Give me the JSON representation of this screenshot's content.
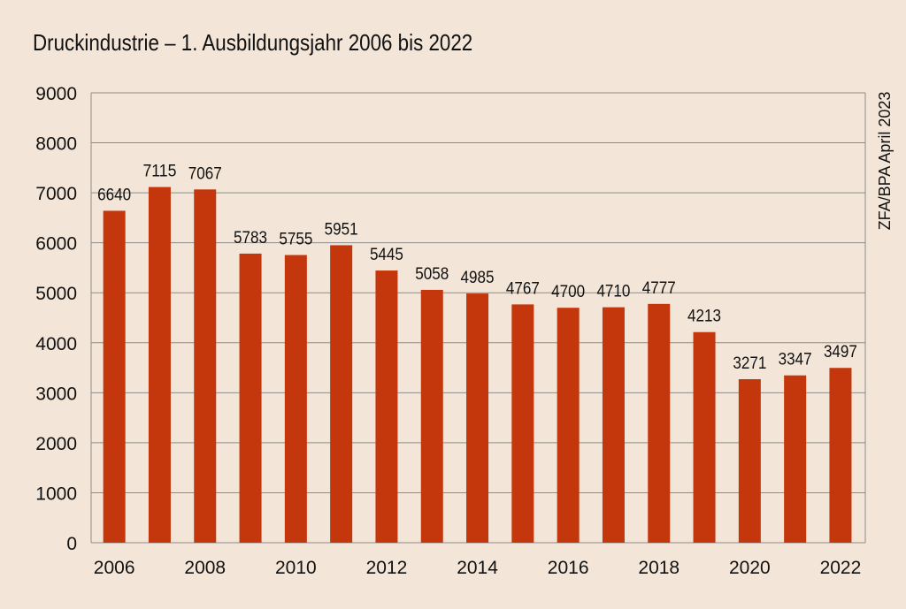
{
  "colors": {
    "background": "#f3e6d8",
    "bar": "#c4360c",
    "grid": "#8c8c8c",
    "text": "#111111"
  },
  "chart_data": {
    "type": "bar",
    "title": "Druckindustrie – 1. Ausbildungsjahr 2006 bis 2022",
    "source": "ZFA/BPA April 2023",
    "xlabel": "",
    "ylabel": "",
    "ylim": [
      0,
      9000
    ],
    "yticks": [
      0,
      1000,
      2000,
      3000,
      4000,
      5000,
      6000,
      7000,
      8000,
      9000
    ],
    "grid": true,
    "categories": [
      "2006",
      "2007",
      "2008",
      "2009",
      "2010",
      "2011",
      "2012",
      "2013",
      "2014",
      "2015",
      "2016",
      "2017",
      "2018",
      "2019",
      "2020",
      "2021",
      "2022"
    ],
    "x_tick_labels": [
      "2006",
      "2008",
      "2010",
      "2012",
      "2014",
      "2016",
      "2018",
      "2020",
      "2022"
    ],
    "values": [
      6640,
      7115,
      7067,
      5783,
      5755,
      5951,
      5445,
      5058,
      4985,
      4767,
      4700,
      4710,
      4777,
      4213,
      3271,
      3347,
      3497
    ],
    "data_labels": [
      "6640",
      "7115",
      "7067",
      "5783",
      "5755",
      "5951",
      "5445",
      "5058",
      "4985",
      "4767",
      "4700",
      "4710",
      "4777",
      "4213",
      "3271",
      "3347",
      "3497"
    ]
  }
}
